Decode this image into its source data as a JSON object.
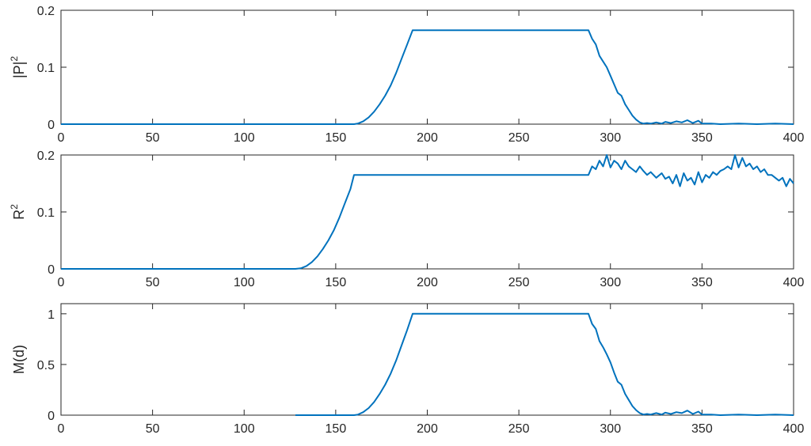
{
  "chart_data": [
    {
      "type": "line",
      "title": "",
      "xlabel": "",
      "ylabel": {
        "base": "|P|",
        "sup": "2"
      },
      "xlim": [
        0,
        400
      ],
      "ylim": [
        0,
        0.2
      ],
      "xticks": [
        0,
        50,
        100,
        150,
        200,
        250,
        300,
        350,
        400
      ],
      "yticks": [
        0,
        0.1,
        0.2
      ],
      "xtick_labels": [
        "0",
        "50",
        "100",
        "150",
        "200",
        "250",
        "300",
        "350",
        "400"
      ],
      "ytick_labels": [
        "0",
        "0.1",
        "0.2"
      ],
      "grid": false,
      "color": "#0072BD",
      "series": [
        {
          "x": [
            0,
            160,
            162,
            165,
            168,
            171,
            174,
            177,
            180,
            183,
            186,
            189,
            192,
            200,
            250,
            288,
            290,
            292,
            294,
            296,
            298,
            300,
            302,
            304,
            306,
            308,
            310,
            312,
            314,
            316,
            318,
            320,
            322,
            325,
            328,
            330,
            333,
            336,
            339,
            342,
            345,
            348,
            350,
            355,
            360,
            370,
            380,
            390,
            400
          ],
          "y": [
            0,
            0,
            0.001,
            0.005,
            0.012,
            0.022,
            0.035,
            0.05,
            0.068,
            0.09,
            0.115,
            0.14,
            0.165,
            0.165,
            0.165,
            0.165,
            0.15,
            0.14,
            0.12,
            0.11,
            0.1,
            0.085,
            0.07,
            0.055,
            0.05,
            0.035,
            0.025,
            0.015,
            0.008,
            0.003,
            0.001,
            0.002,
            0.001,
            0.003,
            0.001,
            0.004,
            0.002,
            0.005,
            0.003,
            0.007,
            0.002,
            0.006,
            0.001,
            0.001,
            0.0,
            0.001,
            0.0,
            0.001,
            0.0
          ]
        }
      ]
    },
    {
      "type": "line",
      "title": "",
      "xlabel": "",
      "ylabel": {
        "base": "R",
        "sup": "2"
      },
      "xlim": [
        0,
        400
      ],
      "ylim": [
        0,
        0.2
      ],
      "xticks": [
        0,
        50,
        100,
        150,
        200,
        250,
        300,
        350,
        400
      ],
      "yticks": [
        0,
        0.1,
        0.2
      ],
      "xtick_labels": [
        "0",
        "50",
        "100",
        "150",
        "200",
        "250",
        "300",
        "350",
        "400"
      ],
      "ytick_labels": [
        "0",
        "0.1",
        "0.2"
      ],
      "grid": false,
      "color": "#0072BD",
      "series": [
        {
          "x": [
            0,
            128,
            131,
            134,
            137,
            140,
            143,
            146,
            149,
            152,
            155,
            158,
            160,
            200,
            250,
            288,
            290,
            292,
            294,
            296,
            298,
            300,
            302,
            304,
            306,
            308,
            310,
            312,
            314,
            316,
            318,
            320,
            322,
            325,
            328,
            330,
            332,
            334,
            336,
            338,
            340,
            342,
            344,
            346,
            348,
            350,
            352,
            354,
            356,
            358,
            360,
            362,
            364,
            366,
            368,
            370,
            372,
            374,
            376,
            378,
            380,
            382,
            384,
            386,
            388,
            390,
            392,
            394,
            396,
            398,
            400
          ],
          "y": [
            0,
            0,
            0.001,
            0.005,
            0.012,
            0.022,
            0.035,
            0.05,
            0.068,
            0.09,
            0.115,
            0.14,
            0.165,
            0.165,
            0.165,
            0.165,
            0.18,
            0.175,
            0.19,
            0.18,
            0.2,
            0.178,
            0.19,
            0.185,
            0.175,
            0.19,
            0.18,
            0.175,
            0.17,
            0.18,
            0.172,
            0.165,
            0.17,
            0.16,
            0.168,
            0.158,
            0.162,
            0.15,
            0.165,
            0.145,
            0.168,
            0.155,
            0.16,
            0.148,
            0.17,
            0.152,
            0.165,
            0.16,
            0.17,
            0.165,
            0.172,
            0.175,
            0.18,
            0.175,
            0.2,
            0.178,
            0.195,
            0.18,
            0.185,
            0.175,
            0.18,
            0.17,
            0.175,
            0.165,
            0.165,
            0.16,
            0.155,
            0.16,
            0.145,
            0.158,
            0.15
          ]
        }
      ]
    },
    {
      "type": "line",
      "title": "",
      "xlabel": "",
      "ylabel": {
        "base": "M(d)",
        "sup": ""
      },
      "xlim": [
        0,
        400
      ],
      "ylim": [
        0,
        1.1
      ],
      "xticks": [
        0,
        50,
        100,
        150,
        200,
        250,
        300,
        350,
        400
      ],
      "yticks": [
        0,
        0.5,
        1
      ],
      "xtick_labels": [
        "0",
        "50",
        "100",
        "150",
        "200",
        "250",
        "300",
        "350",
        "400"
      ],
      "ytick_labels": [
        "0",
        "0.5",
        "1"
      ],
      "grid": false,
      "color": "#0072BD",
      "series": [
        {
          "x": [
            128,
            160,
            162,
            165,
            168,
            171,
            174,
            177,
            180,
            183,
            186,
            189,
            192,
            200,
            250,
            288,
            290,
            292,
            294,
            296,
            298,
            300,
            302,
            304,
            306,
            308,
            310,
            312,
            314,
            316,
            318,
            320,
            322,
            325,
            328,
            330,
            333,
            336,
            339,
            342,
            345,
            348,
            350,
            355,
            360,
            370,
            380,
            390,
            400
          ],
          "y": [
            0,
            0,
            0.005,
            0.03,
            0.07,
            0.13,
            0.21,
            0.3,
            0.41,
            0.54,
            0.69,
            0.84,
            1.0,
            1.0,
            1.0,
            1.0,
            0.9,
            0.85,
            0.73,
            0.67,
            0.6,
            0.52,
            0.42,
            0.33,
            0.3,
            0.21,
            0.15,
            0.09,
            0.05,
            0.02,
            0.006,
            0.012,
            0.006,
            0.02,
            0.006,
            0.025,
            0.012,
            0.03,
            0.02,
            0.045,
            0.012,
            0.035,
            0.006,
            0.006,
            0.0,
            0.006,
            0.0,
            0.006,
            0.0
          ]
        }
      ]
    }
  ]
}
